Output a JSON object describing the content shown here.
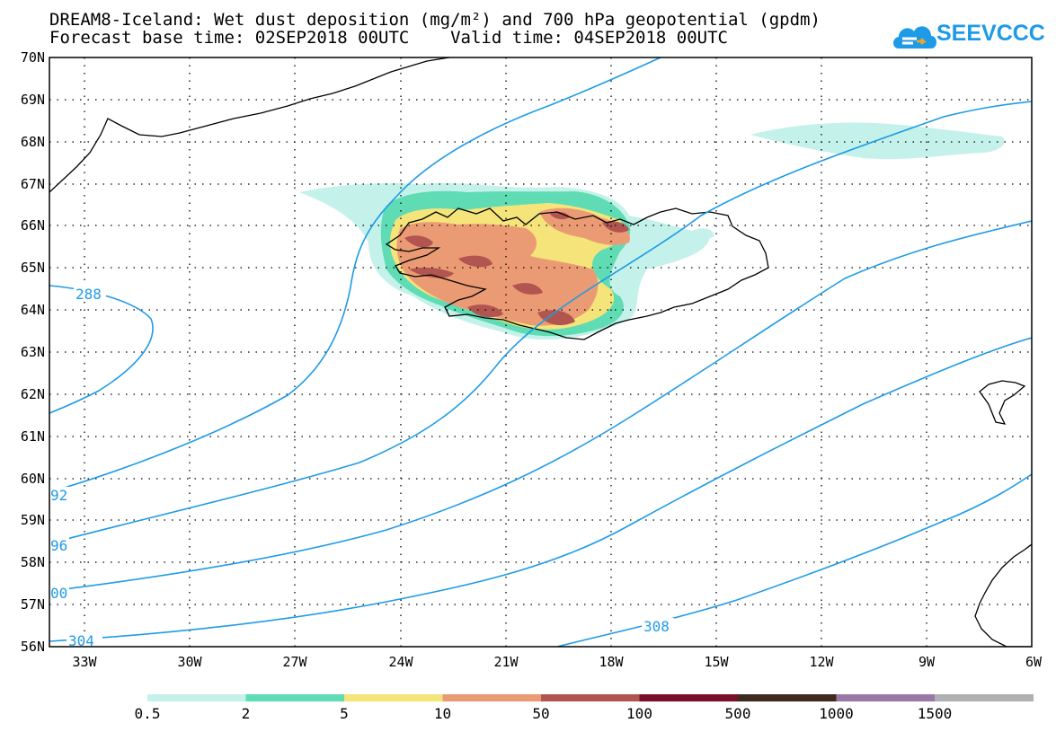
{
  "header": {
    "title_line_1": "DREAM8-Iceland: Wet dust deposition (mg/m²) and 700 hPa geopotential (gpdm)",
    "title_line_2": "Forecast base time: 02SEP2018 00UTC    Valid time: 04SEP2018 00UTC"
  },
  "logo": {
    "text": "SEEVCCC",
    "icon": "cloud-logo-icon",
    "color": "#1e9be6"
  },
  "map": {
    "lat_labels": [
      "70N",
      "69N",
      "68N",
      "67N",
      "66N",
      "65N",
      "64N",
      "63N",
      "62N",
      "61N",
      "60N",
      "59N",
      "58N",
      "57N",
      "56N"
    ],
    "lon_labels": [
      "33W",
      "30W",
      "27W",
      "24W",
      "21W",
      "18W",
      "15W",
      "12W",
      "9W",
      "6W"
    ],
    "contour_color": "#1e9be6",
    "contour_labels": [
      "288",
      "92",
      "96",
      "00",
      "304",
      "308"
    ]
  },
  "colorbar": {
    "labels": [
      "0.5",
      "2",
      "5",
      "10",
      "50",
      "100",
      "500",
      "1000",
      "1500"
    ],
    "colors": [
      "#c4f2ea",
      "#5fdcb4",
      "#f5e47a",
      "#eb9b74",
      "#b25550",
      "#7a0f2a",
      "#3e2a1e",
      "#9a78a6",
      "#b0b0b0"
    ]
  }
}
